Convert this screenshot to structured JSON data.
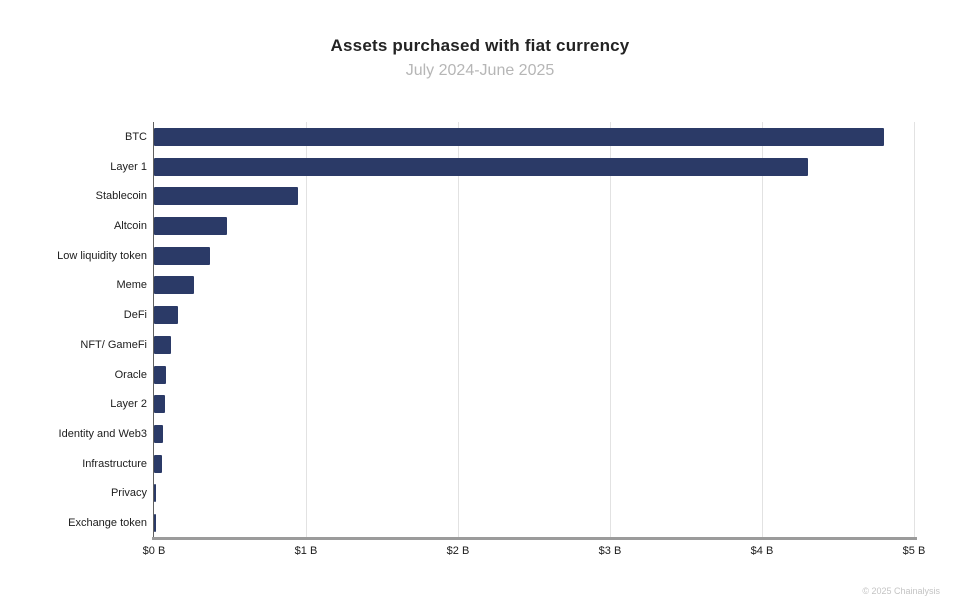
{
  "header": {
    "title": "Assets purchased with fiat currency",
    "subtitle": "July 2024-June 2025"
  },
  "footer": {
    "credit": "© 2025 Chainalysis"
  },
  "colors": {
    "bar": "#2b3a67",
    "gridline": "#e2e2e2",
    "y_axis": "#606060",
    "baseline": "#9b9b9b",
    "title": "#232323",
    "subtitle": "#b6b6b6",
    "labels": "#1c1c1c",
    "credit": "#c4c4c4"
  },
  "chart_data": {
    "type": "bar",
    "orientation": "horizontal",
    "title": "Assets purchased with fiat currency",
    "subtitle": "July 2024-June 2025",
    "categories": [
      "BTC",
      "Layer 1",
      "Stablecoin",
      "Altcoin",
      "Low liquidity token",
      "Meme",
      "DeFi",
      "NFT/ GameFi",
      "Oracle",
      "Layer 2",
      "Identity and Web3",
      "Infrastructure",
      "Privacy",
      "Exchange token"
    ],
    "values": [
      4.8,
      4.3,
      0.95,
      0.48,
      0.37,
      0.26,
      0.16,
      0.11,
      0.08,
      0.07,
      0.06,
      0.05,
      0.01,
      0.01
    ],
    "unit": "$B",
    "xlabel": "",
    "ylabel": "",
    "xlim": [
      0,
      5
    ],
    "x_tick_labels": [
      "$0 B",
      "$1 B",
      "$2 B",
      "$3 B",
      "$4 B",
      "$5 B"
    ],
    "x_tick_values": [
      0,
      1,
      2,
      3,
      4,
      5
    ],
    "grid": "vertical",
    "legend": "none"
  }
}
